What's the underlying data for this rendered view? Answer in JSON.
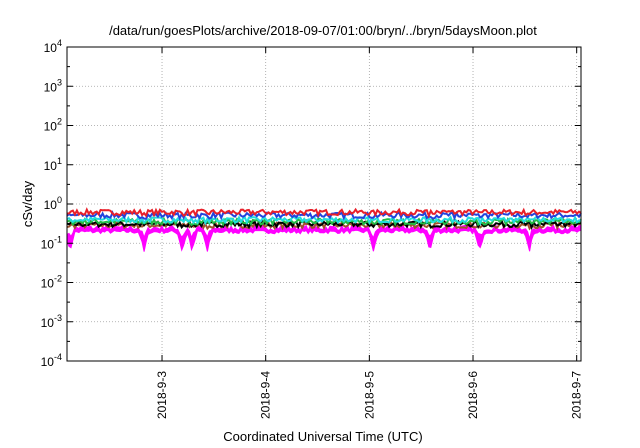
{
  "chart_data": {
    "type": "area",
    "title": "/data/run/goesPlots/archive/2018-09-07/01:00/bryn/../bryn/5daysMoon.plot",
    "xlabel": "Coordinated Universal Time (UTC)",
    "ylabel": "cSv/day",
    "yscale": "log",
    "ylim": [
      0.0001,
      10000
    ],
    "y_ticks": [
      {
        "base": "10",
        "exp": "-4",
        "value": 0.0001
      },
      {
        "base": "10",
        "exp": "-3",
        "value": 0.001
      },
      {
        "base": "10",
        "exp": "-2",
        "value": 0.01
      },
      {
        "base": "10",
        "exp": "-1",
        "value": 0.1
      },
      {
        "base": "10",
        "exp": "0",
        "value": 1
      },
      {
        "base": "10",
        "exp": "1",
        "value": 10
      },
      {
        "base": "10",
        "exp": "2",
        "value": 100
      },
      {
        "base": "10",
        "exp": "3",
        "value": 1000
      },
      {
        "base": "10",
        "exp": "4",
        "value": 10000
      }
    ],
    "xlim": [
      "2018-09-02 02:00",
      "2018-09-07 01:00"
    ],
    "x_ticks": [
      {
        "label": "2018-9-3",
        "value": "2018-09-03"
      },
      {
        "label": "2018-9-4",
        "value": "2018-09-04"
      },
      {
        "label": "2018-9-5",
        "value": "2018-09-05"
      },
      {
        "label": "2018-9-6",
        "value": "2018-09-06"
      },
      {
        "label": "2018-9-7",
        "value": "2018-09-07"
      }
    ],
    "grid": true,
    "series": [
      {
        "color": "#e8202a",
        "level": 0.62,
        "kind": "line"
      },
      {
        "color": "#2244dd",
        "level": 0.52,
        "kind": "line"
      },
      {
        "color": "#22dddd",
        "level": 0.4,
        "kind": "line"
      },
      {
        "color": "#22bb44",
        "level": 0.36,
        "kind": "line"
      },
      {
        "color": "#000000",
        "level": 0.31,
        "kind": "line"
      },
      {
        "color": "#a0522d",
        "level": 0.29,
        "kind": "line"
      },
      {
        "color": "#ff00ff",
        "level": 0.25,
        "kind": "band"
      }
    ],
    "dips": [
      "2018-09-02 02:40",
      "2018-09-02 19:50",
      "2018-09-03 04:40",
      "2018-09-03 07:00",
      "2018-09-03 10:30",
      "2018-09-05 01:00",
      "2018-09-05 14:00",
      "2018-09-06 01:30",
      "2018-09-06 13:00"
    ]
  }
}
